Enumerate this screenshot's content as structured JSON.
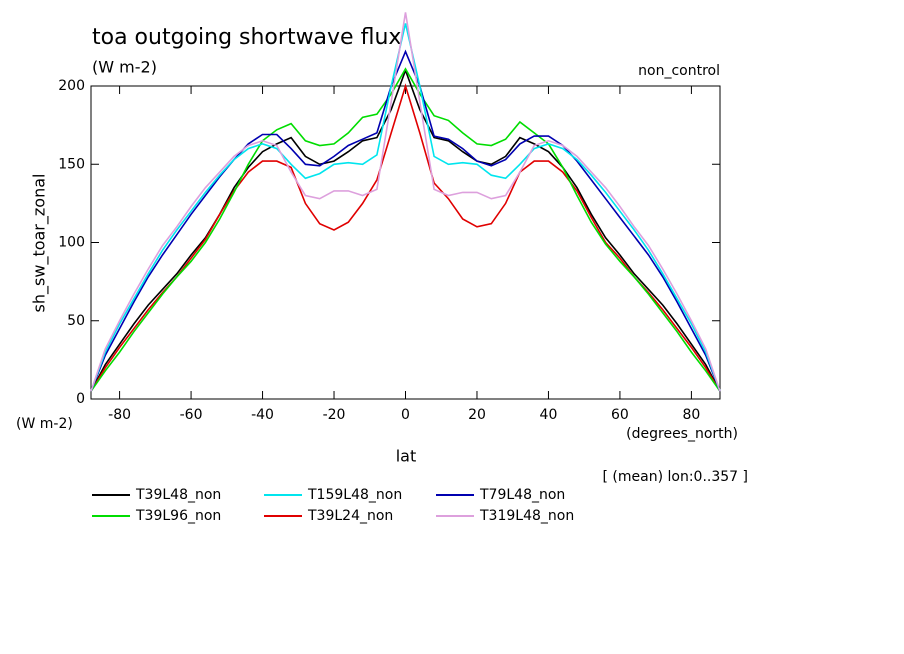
{
  "chart_data": {
    "type": "line",
    "title": "toa outgoing shortwave flux",
    "subtitle": "(W m-2)",
    "top_right_label": "non_control",
    "y_axis_label": "sh_sw_toar_zonal",
    "y_units": "(W m-2)",
    "x_axis_label": "lat",
    "x_units": "(degrees_north)",
    "note": "[ (mean) lon:0..357 ]",
    "xlim": [
      -88,
      88
    ],
    "ylim": [
      0,
      200
    ],
    "xticks": [
      -80,
      -60,
      -40,
      -20,
      0,
      20,
      40,
      60,
      80
    ],
    "yticks": [
      0,
      50,
      100,
      150,
      200
    ],
    "x": [
      -88,
      -84,
      -80,
      -76,
      -72,
      -68,
      -64,
      -60,
      -56,
      -52,
      -48,
      -44,
      -40,
      -36,
      -32,
      -28,
      -24,
      -20,
      -16,
      -12,
      -8,
      -4,
      0,
      4,
      8,
      12,
      16,
      20,
      24,
      28,
      32,
      36,
      40,
      44,
      48,
      52,
      56,
      60,
      64,
      68,
      72,
      76,
      80,
      84,
      88
    ],
    "series": [
      {
        "name": "T39L48_non",
        "color": "#000000",
        "values": [
          5,
          22,
          35,
          48,
          60,
          70,
          80,
          92,
          103,
          118,
          135,
          148,
          158,
          163,
          167,
          155,
          150,
          152,
          158,
          165,
          167,
          185,
          210,
          185,
          167,
          165,
          158,
          152,
          150,
          155,
          167,
          163,
          158,
          148,
          135,
          118,
          103,
          92,
          80,
          70,
          60,
          48,
          35,
          22,
          5
        ]
      },
      {
        "name": "T39L24_non",
        "color": "#e00000",
        "values": [
          5,
          20,
          33,
          45,
          57,
          68,
          78,
          90,
          102,
          118,
          133,
          145,
          152,
          152,
          148,
          125,
          112,
          108,
          113,
          125,
          140,
          170,
          200,
          170,
          138,
          128,
          115,
          110,
          112,
          125,
          145,
          152,
          152,
          145,
          133,
          116,
          100,
          90,
          78,
          68,
          57,
          45,
          33,
          20,
          5
        ]
      },
      {
        "name": "T39L96_non",
        "color": "#00dd00",
        "values": [
          5,
          18,
          30,
          43,
          55,
          67,
          78,
          88,
          100,
          115,
          132,
          150,
          165,
          172,
          176,
          165,
          162,
          163,
          170,
          180,
          182,
          195,
          211,
          195,
          181,
          178,
          170,
          163,
          162,
          166,
          177,
          170,
          163,
          148,
          130,
          113,
          99,
          88,
          78,
          67,
          55,
          43,
          30,
          18,
          5
        ]
      },
      {
        "name": "T79L48_non",
        "color": "#0000b0",
        "values": [
          5,
          28,
          45,
          62,
          78,
          92,
          105,
          118,
          130,
          142,
          153,
          163,
          169,
          169,
          160,
          150,
          149,
          155,
          162,
          166,
          170,
          200,
          222,
          200,
          168,
          166,
          160,
          152,
          149,
          153,
          163,
          168,
          168,
          162,
          152,
          140,
          128,
          116,
          104,
          92,
          78,
          62,
          45,
          28,
          5
        ]
      },
      {
        "name": "T159L48_non",
        "color": "#00e5ee",
        "values": [
          5,
          30,
          48,
          64,
          80,
          95,
          108,
          120,
          132,
          143,
          153,
          160,
          163,
          160,
          150,
          141,
          144,
          150,
          151,
          150,
          156,
          200,
          240,
          200,
          155,
          150,
          151,
          150,
          143,
          141,
          150,
          160,
          163,
          160,
          153,
          143,
          132,
          120,
          108,
          95,
          80,
          64,
          48,
          30,
          5
        ]
      },
      {
        "name": "T319L48_non",
        "color": "#dda0dd",
        "values": [
          5,
          32,
          50,
          67,
          83,
          98,
          110,
          123,
          135,
          145,
          155,
          162,
          165,
          162,
          145,
          130,
          128,
          133,
          133,
          130,
          134,
          190,
          247,
          190,
          134,
          130,
          132,
          132,
          128,
          130,
          145,
          162,
          165,
          162,
          155,
          145,
          135,
          123,
          110,
          98,
          83,
          67,
          50,
          32,
          5
        ]
      }
    ]
  }
}
